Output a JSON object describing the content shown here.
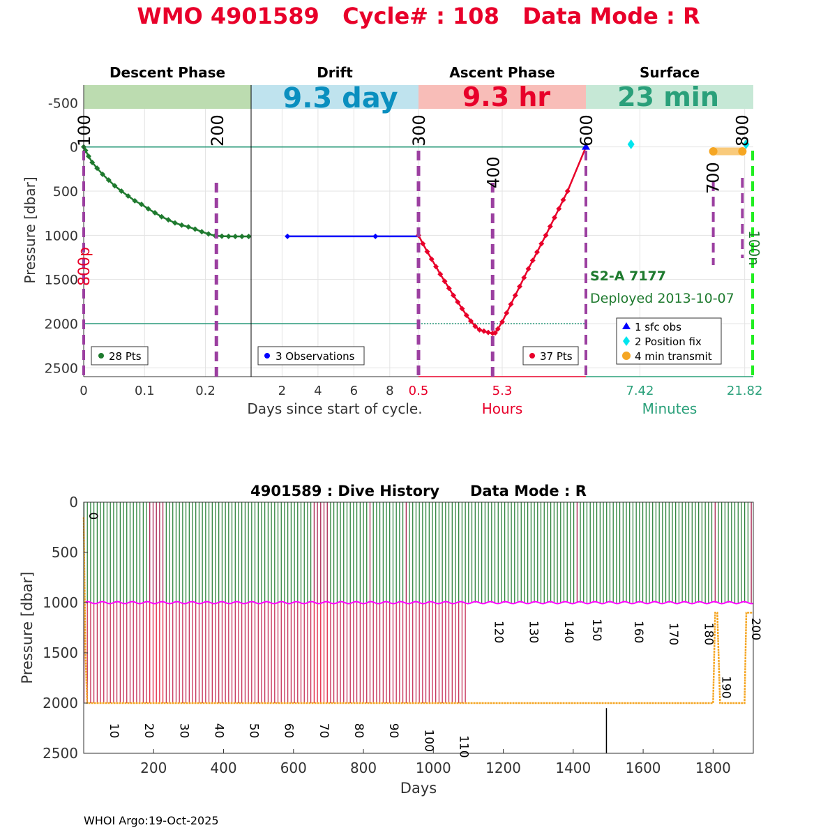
{
  "header": {
    "title": "WMO 4901589   Cycle# : 108   Data Mode : R",
    "footer": "WHOI Argo:19-Oct-2025"
  },
  "colors": {
    "title": "#e8002a",
    "descent": "#1e7a2e",
    "drift": "#0000ff",
    "ascent": "#e8002a",
    "surface_teal": "#2aa07a",
    "band_descent": "#bcdcb0",
    "band_drift": "#bfe3ee",
    "band_ascent": "#f8bdb8",
    "band_surface": "#c6e8d6",
    "drift_text": "#0a8fbf",
    "ascent_text": "#e8002a",
    "surface_text": "#2aa07a",
    "marker_purple": "#9b3fa0",
    "orange": "#f5a623",
    "cyan": "#00e5ee",
    "lime": "#22ee22",
    "magenta": "#ff00ff",
    "maroon": "#a01040"
  },
  "chart_data": [
    {
      "type": "line",
      "name": "cycle-profile",
      "ylabel": "Pressure [dbar]",
      "ylim": [
        2600,
        -700
      ],
      "yticks": [
        "-500",
        "0",
        "500",
        "1000",
        "1500",
        "2000",
        "2500"
      ],
      "ytick_values": [
        -500,
        0,
        500,
        1000,
        1500,
        2000,
        2500
      ],
      "grid": true,
      "reference_lines": [
        0,
        2000
      ],
      "xlabel_descent_drift": "Days since start of cycle.",
      "xlabel_ascent": "Hours",
      "xlabel_surface": "Minutes",
      "phases": {
        "descent": {
          "title": "Descent Phase",
          "band_text": "",
          "xlim": [
            0,
            0.275
          ],
          "xticks": [
            "0",
            "0.1",
            "0.2"
          ],
          "xtick_values": [
            0,
            0.1,
            0.2
          ],
          "legend": "28 Pts",
          "x": [
            0,
            0.003,
            0.008,
            0.014,
            0.022,
            0.031,
            0.041,
            0.051,
            0.062,
            0.073,
            0.084,
            0.095,
            0.106,
            0.117,
            0.128,
            0.139,
            0.15,
            0.161,
            0.172,
            0.183,
            0.194,
            0.205,
            0.216,
            0.227,
            0.238,
            0.249,
            0.26,
            0.271
          ],
          "y": [
            0,
            40,
            105,
            175,
            240,
            310,
            375,
            440,
            500,
            555,
            610,
            650,
            700,
            745,
            790,
            825,
            860,
            885,
            905,
            930,
            960,
            985,
            1005,
            1010,
            1012,
            1013,
            1013,
            1013
          ],
          "event_labels": [
            "100",
            "200"
          ],
          "event_x": [
            0,
            0.218
          ],
          "side_label": "800p"
        },
        "drift": {
          "title": "Drift",
          "band_text": "9.3 day",
          "xlim": [
            0.275,
            9.6
          ],
          "xticks": [
            "2",
            "4",
            "6",
            "8"
          ],
          "xtick_values": [
            2,
            4,
            6,
            8
          ],
          "legend": "3 Observations",
          "x": [
            2.3,
            4.0,
            7.2,
            9.6
          ],
          "y": [
            1012,
            1012,
            1012,
            1012
          ],
          "markers_x": [
            2.3,
            7.2
          ],
          "event_labels": [
            "300"
          ]
        },
        "ascent": {
          "title": "Ascent Phase",
          "band_text": "9.3 hr",
          "xlim": [
            0.5,
            10.1
          ],
          "xticks": [
            "0.5",
            "5.3"
          ],
          "xtick_values": [
            0.5,
            5.3
          ],
          "legend": "37 Pts",
          "x": [
            0.5,
            0.75,
            1.0,
            1.25,
            1.5,
            1.75,
            2.0,
            2.25,
            2.5,
            2.75,
            3.0,
            3.25,
            3.5,
            3.75,
            4.0,
            4.25,
            4.5,
            4.75,
            4.9,
            5.05,
            5.3,
            5.55,
            5.8,
            6.05,
            6.3,
            6.55,
            6.8,
            7.05,
            7.3,
            7.55,
            7.8,
            8.05,
            8.3,
            8.55,
            8.8,
            9.05,
            10.1
          ],
          "y": [
            1000,
            1095,
            1185,
            1270,
            1355,
            1440,
            1520,
            1600,
            1680,
            1755,
            1830,
            1905,
            1970,
            2030,
            2070,
            2085,
            2100,
            2110,
            2105,
            2060,
            1980,
            1880,
            1780,
            1680,
            1580,
            1480,
            1380,
            1285,
            1190,
            1095,
            1000,
            900,
            800,
            700,
            600,
            500,
            0
          ],
          "event_labels": [
            "400",
            "600"
          ],
          "event_x": [
            4.75,
            10.1
          ]
        },
        "surface": {
          "title": "Surface",
          "band_text": "23 min",
          "xlim": [
            0,
            23
          ],
          "xticks": [
            "7.42",
            "21.82"
          ],
          "xtick_values": [
            7.42,
            21.82
          ],
          "sfc_obs": [
            {
              "x": 0,
              "y": 0
            }
          ],
          "position_fix": [
            {
              "x": 6.2,
              "y": -30
            },
            {
              "x": 22.0,
              "y": -30
            }
          ],
          "transmit_segment": [
            17.5,
            21.5
          ],
          "transmit_y": 50,
          "event_labels": [
            "700",
            "800"
          ],
          "event_x": [
            17.5,
            21.5
          ],
          "side_label": "100n",
          "legend": [
            "1 sfc obs",
            "2 Position fix",
            "4 min transmit"
          ]
        }
      },
      "annotations": {
        "float_id": "S2-A 7177",
        "deployed": "Deployed 2013-10-07"
      }
    },
    {
      "type": "bar",
      "name": "dive-history",
      "title": "4901589 : Dive History      Data Mode : R",
      "xlabel": "Days",
      "ylabel": "Pressure [dbar]",
      "xlim": [
        0,
        1915
      ],
      "ylim": [
        0,
        2500
      ],
      "xticks": [
        "200",
        "400",
        "600",
        "800",
        "1000",
        "1200",
        "1400",
        "1600",
        "1800"
      ],
      "xtick_values": [
        200,
        400,
        600,
        800,
        1000,
        1200,
        1400,
        1600,
        1800
      ],
      "yticks": [
        "0",
        "500",
        "1000",
        "1500",
        "2000",
        "2500"
      ],
      "ytick_values": [
        0,
        500,
        1000,
        1500,
        2000,
        2500
      ],
      "cycle_interval_days": 9.4,
      "profile_depth_early": 2000,
      "profile_depth_late": 1000,
      "switch_day": 1100,
      "drift_pressure": 1000,
      "cycle_labels": [
        "0",
        "10",
        "20",
        "30",
        "40",
        "50",
        "60",
        "70",
        "80",
        "90",
        "100",
        "110",
        "120",
        "130",
        "140",
        "150",
        "160",
        "170",
        "180",
        "190",
        "200"
      ],
      "cycle_label_days": [
        0,
        60,
        160,
        260,
        360,
        460,
        560,
        660,
        760,
        860,
        960,
        1060,
        1160,
        1260,
        1360,
        1440,
        1560,
        1660,
        1760,
        1810,
        1895
      ],
      "cycle_label_depths": [
        100,
        2200,
        2200,
        2200,
        2200,
        2200,
        2200,
        2200,
        2200,
        2200,
        2260,
        2320,
        1180,
        1180,
        1180,
        1160,
        1180,
        1200,
        1200,
        1730,
        1150
      ],
      "orange_track": {
        "x": [
          0,
          5,
          10,
          20,
          1100,
          1800,
          1806,
          1812,
          1820,
          1830,
          1890,
          1895,
          1900,
          1915
        ],
        "y": [
          150,
          1500,
          2000,
          2000,
          2000,
          2000,
          1100,
          1100,
          2000,
          2000,
          2000,
          1100,
          1100,
          1100
        ]
      },
      "black_spike": {
        "x": 1495,
        "y": [
          2050,
          2500
        ]
      }
    }
  ]
}
